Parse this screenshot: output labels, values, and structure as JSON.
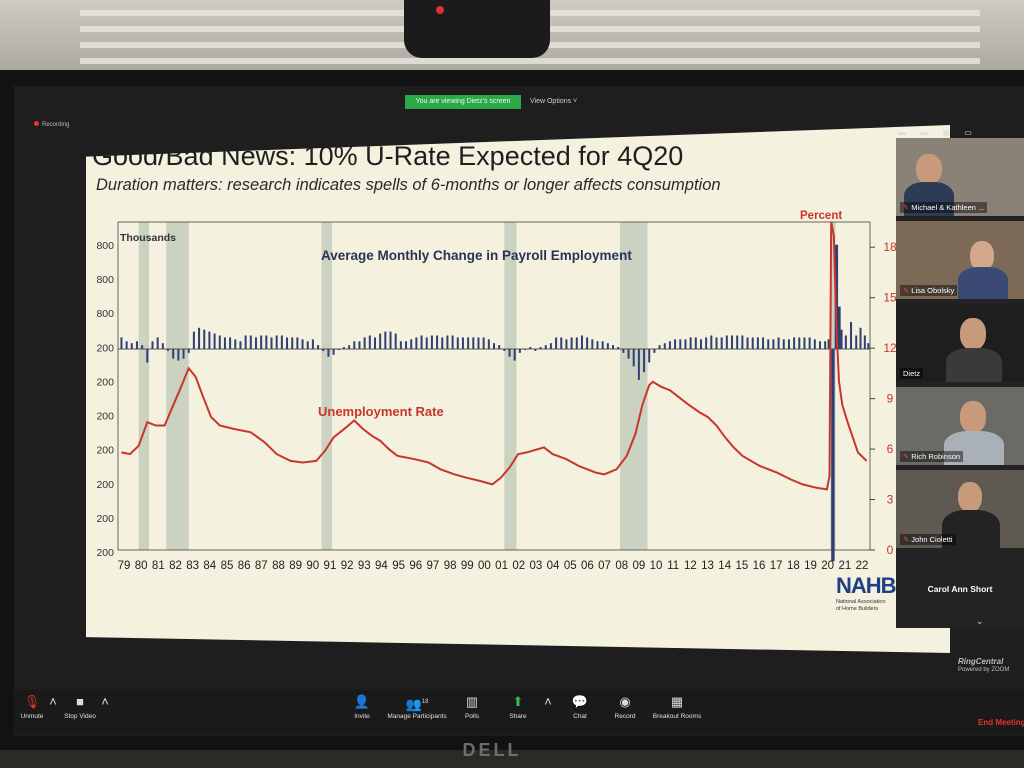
{
  "zoom": {
    "viewing_banner": "You are viewing Dietz's screen",
    "view_options": "View Options ˅",
    "recording_label": "Recording",
    "brand": "RingCentral",
    "brand_sub": "Powered by ZOOM",
    "end_meeting": "End Meeting"
  },
  "slide": {
    "title": "Good/Bad News: 10% U-Rate Expected for 4Q20",
    "subtitle": "Duration matters: research indicates spells of 6-months or longer affects consumption",
    "logo_text": "NAHB",
    "logo_caption_1": "National Association",
    "logo_caption_2": "of Home Builders"
  },
  "chart_data": {
    "type": "bar",
    "title": "Average Monthly Change in Payroll Employment",
    "left_axis_unit": "Thousands",
    "right_axis_unit": "Percent",
    "left_tick_labels": [
      "800",
      "800",
      "800",
      "200",
      "200",
      "200",
      "200",
      "200",
      "200",
      "200"
    ],
    "right_ticks": [
      0,
      3,
      6,
      9,
      12,
      15,
      18
    ],
    "right_ylim": [
      0,
      19.5
    ],
    "x_labels": [
      "79",
      "80",
      "81",
      "82",
      "83",
      "84",
      "85",
      "86",
      "87",
      "88",
      "89",
      "90",
      "91",
      "92",
      "93",
      "94",
      "95",
      "96",
      "97",
      "98",
      "99",
      "00",
      "01",
      "02",
      "03",
      "04",
      "05",
      "06",
      "07",
      "08",
      "09",
      "10",
      "11",
      "12",
      "13",
      "14",
      "15",
      "16",
      "17",
      "18",
      "19",
      "20",
      "21",
      "22"
    ],
    "recessions": [
      [
        1980.0,
        1980.6
      ],
      [
        1981.6,
        1982.9
      ],
      [
        1990.6,
        1991.2
      ],
      [
        2001.2,
        2001.9
      ],
      [
        2007.9,
        2009.5
      ],
      [
        2020.1,
        2020.4
      ]
    ],
    "series": [
      {
        "name": "Unemployment Rate",
        "axis": "right",
        "points": [
          [
            1979.0,
            5.8
          ],
          [
            1979.5,
            5.7
          ],
          [
            1980.0,
            6.2
          ],
          [
            1980.5,
            7.6
          ],
          [
            1981.0,
            7.4
          ],
          [
            1981.5,
            7.4
          ],
          [
            1982.0,
            8.6
          ],
          [
            1982.5,
            9.8
          ],
          [
            1982.9,
            10.8
          ],
          [
            1983.3,
            10.3
          ],
          [
            1983.7,
            9.2
          ],
          [
            1984.2,
            7.9
          ],
          [
            1984.7,
            7.4
          ],
          [
            1985.5,
            7.2
          ],
          [
            1986.5,
            7.0
          ],
          [
            1987.3,
            6.4
          ],
          [
            1988.0,
            5.7
          ],
          [
            1988.8,
            5.3
          ],
          [
            1989.5,
            5.2
          ],
          [
            1990.3,
            5.3
          ],
          [
            1990.8,
            5.9
          ],
          [
            1991.3,
            6.7
          ],
          [
            1991.8,
            7.1
          ],
          [
            1992.5,
            7.7
          ],
          [
            1993.0,
            7.2
          ],
          [
            1993.5,
            6.8
          ],
          [
            1994.0,
            6.5
          ],
          [
            1994.5,
            6.0
          ],
          [
            1995.0,
            5.6
          ],
          [
            1996.0,
            5.4
          ],
          [
            1996.8,
            5.2
          ],
          [
            1997.5,
            4.8
          ],
          [
            1998.3,
            4.5
          ],
          [
            1999.0,
            4.3
          ],
          [
            1999.8,
            4.1
          ],
          [
            2000.5,
            3.9
          ],
          [
            2001.0,
            4.3
          ],
          [
            2001.5,
            4.9
          ],
          [
            2002.0,
            5.7
          ],
          [
            2002.5,
            5.8
          ],
          [
            2003.5,
            6.1
          ],
          [
            2004.0,
            5.7
          ],
          [
            2004.8,
            5.4
          ],
          [
            2005.5,
            5.0
          ],
          [
            2006.5,
            4.6
          ],
          [
            2007.0,
            4.5
          ],
          [
            2007.7,
            4.8
          ],
          [
            2008.3,
            5.6
          ],
          [
            2008.8,
            6.9
          ],
          [
            2009.2,
            8.6
          ],
          [
            2009.6,
            9.8
          ],
          [
            2009.8,
            10.0
          ],
          [
            2010.3,
            9.7
          ],
          [
            2010.8,
            9.5
          ],
          [
            2011.3,
            9.1
          ],
          [
            2011.8,
            8.7
          ],
          [
            2012.5,
            8.2
          ],
          [
            2013.0,
            7.9
          ],
          [
            2013.5,
            7.4
          ],
          [
            2014.0,
            6.7
          ],
          [
            2014.5,
            6.1
          ],
          [
            2015.0,
            5.6
          ],
          [
            2015.5,
            5.3
          ],
          [
            2016.0,
            5.0
          ],
          [
            2017.0,
            4.6
          ],
          [
            2017.8,
            4.2
          ],
          [
            2018.5,
            3.9
          ],
          [
            2019.3,
            3.7
          ],
          [
            2019.9,
            3.6
          ],
          [
            2020.05,
            4.4
          ],
          [
            2020.15,
            19.5
          ],
          [
            2020.3,
            18.7
          ],
          [
            2020.45,
            13.3
          ],
          [
            2020.6,
            10.0
          ],
          [
            2020.8,
            8.6
          ],
          [
            2021.1,
            7.6
          ],
          [
            2021.4,
            6.7
          ],
          [
            2021.7,
            5.8
          ],
          [
            2022.0,
            5.5
          ],
          [
            2022.2,
            5.3
          ]
        ]
      },
      {
        "name": "",
        "axis": "left",
        "note": "bars plotted relative to the printed zero line",
        "bars_relative": [
          [
            1979.0,
            0.3
          ],
          [
            1979.3,
            0.2
          ],
          [
            1979.6,
            0.15
          ],
          [
            1979.9,
            0.2
          ],
          [
            1980.2,
            0.1
          ],
          [
            1980.5,
            -0.35
          ],
          [
            1980.8,
            0.2
          ],
          [
            1981.1,
            0.3
          ],
          [
            1981.4,
            0.15
          ],
          [
            1981.7,
            -0.05
          ],
          [
            1982.0,
            -0.25
          ],
          [
            1982.3,
            -0.3
          ],
          [
            1982.6,
            -0.25
          ],
          [
            1982.9,
            -0.1
          ],
          [
            1983.2,
            0.45
          ],
          [
            1983.5,
            0.55
          ],
          [
            1983.8,
            0.5
          ],
          [
            1984.1,
            0.45
          ],
          [
            1984.4,
            0.4
          ],
          [
            1984.7,
            0.35
          ],
          [
            1985.0,
            0.3
          ],
          [
            1985.3,
            0.3
          ],
          [
            1985.6,
            0.25
          ],
          [
            1985.9,
            0.2
          ],
          [
            1986.2,
            0.35
          ],
          [
            1986.5,
            0.35
          ],
          [
            1986.8,
            0.3
          ],
          [
            1987.1,
            0.35
          ],
          [
            1987.4,
            0.35
          ],
          [
            1987.7,
            0.3
          ],
          [
            1988.0,
            0.35
          ],
          [
            1988.3,
            0.35
          ],
          [
            1988.6,
            0.3
          ],
          [
            1988.9,
            0.3
          ],
          [
            1989.2,
            0.3
          ],
          [
            1989.5,
            0.25
          ],
          [
            1989.8,
            0.2
          ],
          [
            1990.1,
            0.25
          ],
          [
            1990.4,
            0.1
          ],
          [
            1990.7,
            -0.05
          ],
          [
            1991.0,
            -0.2
          ],
          [
            1991.3,
            -0.15
          ],
          [
            1991.6,
            0.0
          ],
          [
            1991.9,
            0.05
          ],
          [
            1992.2,
            0.1
          ],
          [
            1992.5,
            0.2
          ],
          [
            1992.8,
            0.2
          ],
          [
            1993.1,
            0.3
          ],
          [
            1993.4,
            0.35
          ],
          [
            1993.7,
            0.3
          ],
          [
            1994.0,
            0.4
          ],
          [
            1994.3,
            0.45
          ],
          [
            1994.6,
            0.45
          ],
          [
            1994.9,
            0.4
          ],
          [
            1995.2,
            0.2
          ],
          [
            1995.5,
            0.2
          ],
          [
            1995.8,
            0.25
          ],
          [
            1996.1,
            0.3
          ],
          [
            1996.4,
            0.35
          ],
          [
            1996.7,
            0.3
          ],
          [
            1997.0,
            0.35
          ],
          [
            1997.3,
            0.35
          ],
          [
            1997.6,
            0.3
          ],
          [
            1997.9,
            0.35
          ],
          [
            1998.2,
            0.35
          ],
          [
            1998.5,
            0.3
          ],
          [
            1998.8,
            0.3
          ],
          [
            1999.1,
            0.3
          ],
          [
            1999.4,
            0.3
          ],
          [
            1999.7,
            0.3
          ],
          [
            2000.0,
            0.3
          ],
          [
            2000.3,
            0.25
          ],
          [
            2000.6,
            0.15
          ],
          [
            2000.9,
            0.1
          ],
          [
            2001.2,
            -0.05
          ],
          [
            2001.5,
            -0.2
          ],
          [
            2001.8,
            -0.3
          ],
          [
            2002.1,
            -0.1
          ],
          [
            2002.4,
            0.0
          ],
          [
            2002.7,
            0.05
          ],
          [
            2003.0,
            -0.05
          ],
          [
            2003.3,
            0.05
          ],
          [
            2003.6,
            0.1
          ],
          [
            2003.9,
            0.15
          ],
          [
            2004.2,
            0.3
          ],
          [
            2004.5,
            0.3
          ],
          [
            2004.8,
            0.25
          ],
          [
            2005.1,
            0.3
          ],
          [
            2005.4,
            0.3
          ],
          [
            2005.7,
            0.35
          ],
          [
            2006.0,
            0.3
          ],
          [
            2006.3,
            0.25
          ],
          [
            2006.6,
            0.2
          ],
          [
            2006.9,
            0.2
          ],
          [
            2007.2,
            0.15
          ],
          [
            2007.5,
            0.1
          ],
          [
            2007.8,
            0.05
          ],
          [
            2008.1,
            -0.1
          ],
          [
            2008.4,
            -0.25
          ],
          [
            2008.7,
            -0.45
          ],
          [
            2009.0,
            -0.8
          ],
          [
            2009.3,
            -0.6
          ],
          [
            2009.6,
            -0.35
          ],
          [
            2009.9,
            -0.1
          ],
          [
            2010.2,
            0.1
          ],
          [
            2010.5,
            0.15
          ],
          [
            2010.8,
            0.2
          ],
          [
            2011.1,
            0.25
          ],
          [
            2011.4,
            0.25
          ],
          [
            2011.7,
            0.25
          ],
          [
            2012.0,
            0.3
          ],
          [
            2012.3,
            0.3
          ],
          [
            2012.6,
            0.25
          ],
          [
            2012.9,
            0.3
          ],
          [
            2013.2,
            0.35
          ],
          [
            2013.5,
            0.3
          ],
          [
            2013.8,
            0.3
          ],
          [
            2014.1,
            0.35
          ],
          [
            2014.4,
            0.35
          ],
          [
            2014.7,
            0.35
          ],
          [
            2015.0,
            0.35
          ],
          [
            2015.3,
            0.3
          ],
          [
            2015.6,
            0.3
          ],
          [
            2015.9,
            0.3
          ],
          [
            2016.2,
            0.3
          ],
          [
            2016.5,
            0.25
          ],
          [
            2016.8,
            0.25
          ],
          [
            2017.1,
            0.3
          ],
          [
            2017.4,
            0.25
          ],
          [
            2017.7,
            0.25
          ],
          [
            2018.0,
            0.3
          ],
          [
            2018.3,
            0.3
          ],
          [
            2018.6,
            0.3
          ],
          [
            2018.9,
            0.3
          ],
          [
            2019.2,
            0.25
          ],
          [
            2019.5,
            0.2
          ],
          [
            2019.8,
            0.2
          ],
          [
            2020.0,
            0.25
          ],
          [
            2020.25,
            -5.5
          ],
          [
            2020.45,
            2.7
          ],
          [
            2020.6,
            1.1
          ],
          [
            2020.75,
            0.5
          ],
          [
            2021.0,
            0.35
          ],
          [
            2021.3,
            0.7
          ],
          [
            2021.6,
            0.35
          ],
          [
            2021.85,
            0.55
          ],
          [
            2022.1,
            0.35
          ],
          [
            2022.3,
            0.15
          ]
        ]
      }
    ],
    "annotations": [
      "Unemployment Rate"
    ]
  },
  "participants": [
    {
      "name": "Michael & Kathleen ..."
    },
    {
      "name": "Lisa Obolsky"
    },
    {
      "name": "Dietz"
    },
    {
      "name": "Rich Robinson"
    },
    {
      "name": "John Cioletti"
    },
    {
      "name": "Carol Ann Short"
    }
  ],
  "toolbar": {
    "unmute": "Unmute",
    "stop_video": "Stop Video",
    "invite": "Invite",
    "manage_participants": "Manage Participants",
    "participant_count": "18",
    "polls": "Polls",
    "share": "Share",
    "chat": "Chat",
    "record": "Record",
    "breakout_rooms": "Breakout Rooms"
  },
  "monitor_brand": "DELL"
}
